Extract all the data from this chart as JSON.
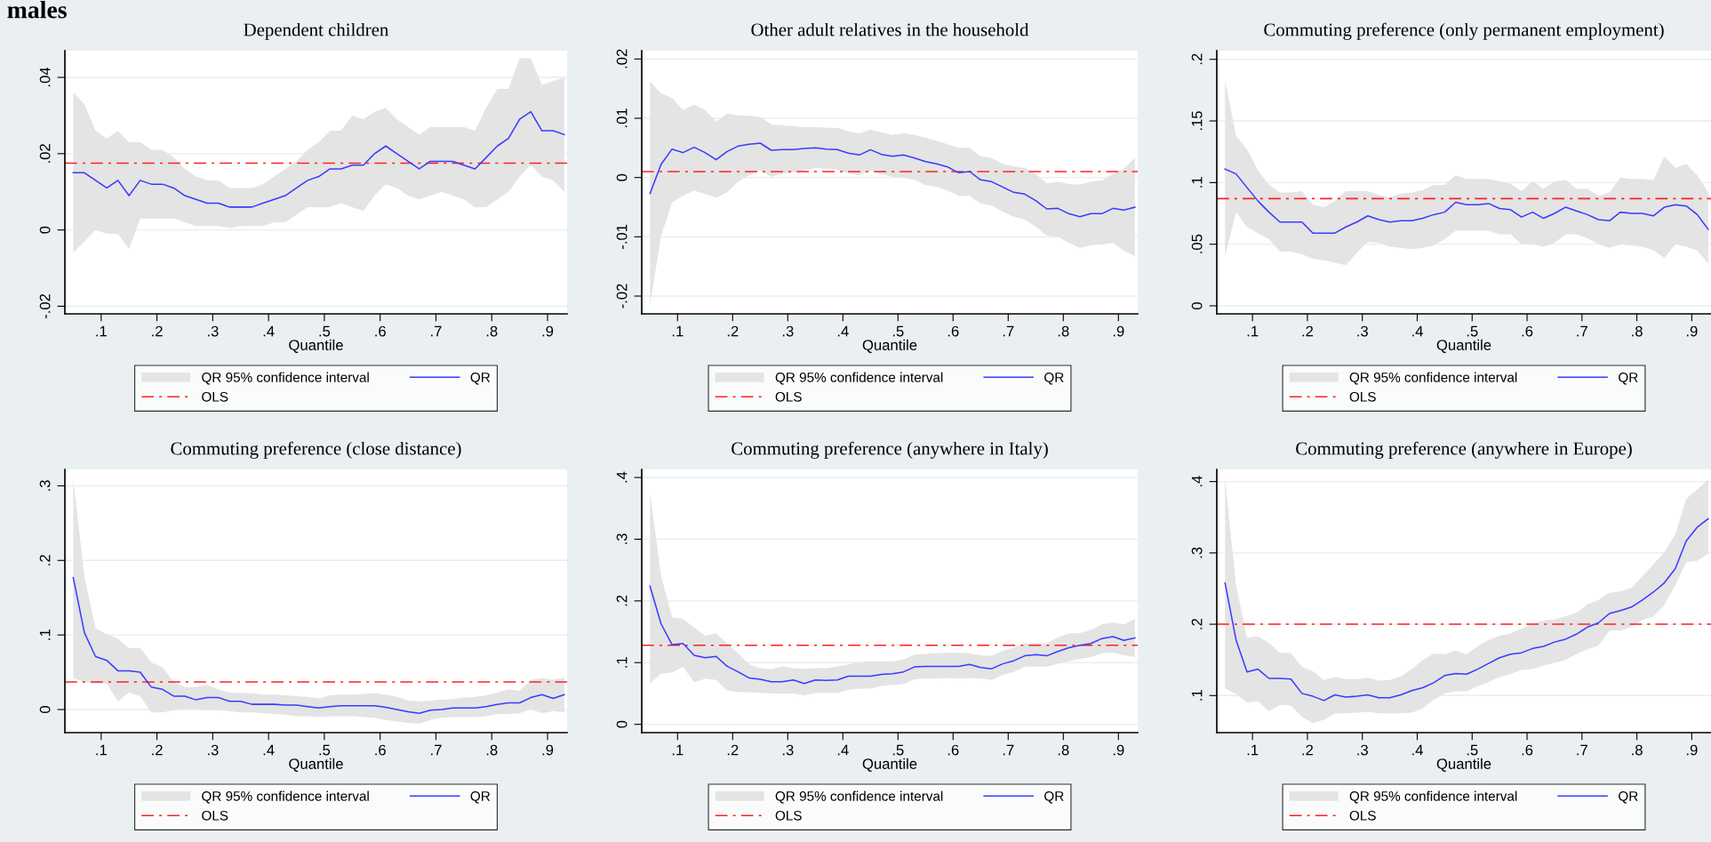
{
  "chart_data": [
    {
      "type": "line",
      "title": "Dependent children",
      "xlabel": "Quantile",
      "annotations": [
        "QR 95% confidence interval",
        "males"
      ],
      "x": [
        0.05,
        0.07,
        0.09,
        0.11,
        0.13,
        0.15,
        0.17,
        0.19,
        0.21,
        0.23,
        0.25,
        0.27,
        0.29,
        0.31,
        0.33,
        0.35,
        0.37,
        0.39,
        0.41,
        0.43,
        0.45,
        0.47,
        0.49,
        0.51,
        0.53,
        0.55,
        0.57,
        0.59,
        0.61,
        0.63,
        0.65,
        0.67,
        0.69,
        0.71,
        0.73,
        0.75,
        0.77,
        0.79,
        0.81,
        0.83,
        0.85,
        0.87,
        0.89,
        0.91,
        0.93
      ],
      "series": [
        {
          "lower": [
            -0.006,
            -0.003,
            0,
            -0.001,
            -0.001,
            -0.005,
            0.003,
            0.003,
            0.003,
            0.003,
            0.002,
            0.001,
            0.001,
            0.001,
            0.0005,
            0.001,
            0.001,
            0.001,
            0.002,
            0.002,
            0.004,
            0.006,
            0.006,
            0.006,
            0.007,
            0.006,
            0.005,
            0.009,
            0.012,
            0.011,
            0.009,
            0.008,
            0.009,
            0.01,
            0.009,
            0.008,
            0.006,
            0.006,
            0.008,
            0.01,
            0.014,
            0.017,
            0.014,
            0.013,
            0.01
          ],
          "upper": [
            0.036,
            0.033,
            0.026,
            0.024,
            0.026,
            0.023,
            0.023,
            0.021,
            0.021,
            0.019,
            0.016,
            0.014,
            0.013,
            0.013,
            0.011,
            0.011,
            0.011,
            0.012,
            0.014,
            0.016,
            0.018,
            0.021,
            0.023,
            0.026,
            0.026,
            0.03,
            0.029,
            0.031,
            0.032,
            0.029,
            0.027,
            0.025,
            0.027,
            0.027,
            0.027,
            0.027,
            0.026,
            0.032,
            0.037,
            0.037,
            0.045,
            0.045,
            0.038,
            0.039,
            0.04
          ],
          "name": "QR",
          "color": "#3a3aff",
          "values": [
            0.015,
            0.015,
            0.013,
            0.011,
            0.013,
            0.009,
            0.013,
            0.012,
            0.012,
            0.011,
            0.009,
            0.008,
            0.007,
            0.007,
            0.006,
            0.006,
            0.006,
            0.007,
            0.008,
            0.009,
            0.011,
            0.013,
            0.014,
            0.016,
            0.016,
            0.017,
            0.017,
            0.02,
            0.022,
            0.02,
            0.018,
            0.016,
            0.018,
            0.018,
            0.018,
            0.017,
            0.016,
            0.019,
            0.022,
            0.024,
            0.029,
            0.031,
            0.026,
            0.026,
            0.025
          ]
        }
      ],
      "ref_lines": [
        {
          "axis": "y",
          "value": 0.0175,
          "label": "OLS",
          "color": "#ff2020",
          "line_style": "dashdot"
        }
      ],
      "xlim": [
        0.035,
        0.935
      ],
      "xticks": [
        {
          "value": 0.1,
          "label": ".1"
        },
        {
          "value": 0.2,
          "label": ".2"
        },
        {
          "value": 0.3,
          "label": ".3"
        },
        {
          "value": 0.4,
          "label": ".4"
        },
        {
          "value": 0.5,
          "label": ".5"
        },
        {
          "value": 0.6,
          "label": ".6"
        },
        {
          "value": 0.7,
          "label": ".7"
        },
        {
          "value": 0.8,
          "label": ".8"
        },
        {
          "value": 0.9,
          "label": ".9"
        }
      ],
      "ylim": [
        -0.022,
        0.047
      ],
      "yticks": [
        {
          "value": -0.02,
          "label": "-.02"
        },
        0,
        {
          "value": 0.02,
          "label": ".02"
        },
        {
          "value": 0.04,
          "label": ".04"
        }
      ],
      "grid": "y",
      "legend": "bottom"
    },
    {
      "type": "line",
      "title": "Other adult relatives in the household",
      "xlabel": "Quantile",
      "annotations": [
        "QR 95% confidence interval"
      ],
      "x": [
        0.05,
        0.07,
        0.09,
        0.11,
        0.13,
        0.15,
        0.17,
        0.19,
        0.21,
        0.23,
        0.25,
        0.27,
        0.29,
        0.31,
        0.33,
        0.35,
        0.37,
        0.39,
        0.41,
        0.43,
        0.45,
        0.47,
        0.49,
        0.51,
        0.53,
        0.55,
        0.57,
        0.59,
        0.61,
        0.63,
        0.65,
        0.67,
        0.69,
        0.71,
        0.73,
        0.75,
        0.77,
        0.79,
        0.81,
        0.83,
        0.85,
        0.87,
        0.89,
        0.91,
        0.93
      ],
      "series": [
        {
          "lower": [
            -0.0215,
            -0.0099,
            -0.0042,
            -0.0031,
            -0.0022,
            -0.0028,
            -0.0034,
            -0.0025,
            -0.0007,
            0.0004,
            0.0012,
            0.0001,
            0.0006,
            0.0009,
            0.0012,
            0.0016,
            0.0015,
            0.0013,
            0.0007,
            0.0004,
            0.0012,
            0.0006,
            0.0001,
            0,
            -0.0004,
            -0.0013,
            -0.0016,
            -0.0022,
            -0.0031,
            -0.0031,
            -0.0044,
            -0.0047,
            -0.0058,
            -0.0066,
            -0.0071,
            -0.0083,
            -0.0098,
            -0.01,
            -0.011,
            -0.0119,
            -0.0114,
            -0.0113,
            -0.011,
            -0.0123,
            -0.0133
          ],
          "upper": [
            0.0162,
            0.0142,
            0.0134,
            0.0114,
            0.0123,
            0.0114,
            0.0094,
            0.0108,
            0.0105,
            0.0104,
            0.0102,
            0.009,
            0.0088,
            0.0087,
            0.0085,
            0.0085,
            0.0084,
            0.0084,
            0.0078,
            0.0074,
            0.0081,
            0.0076,
            0.0072,
            0.0075,
            0.0072,
            0.0067,
            0.0062,
            0.0056,
            0.005,
            0.005,
            0.0036,
            0.0033,
            0.0023,
            0.0019,
            0.0016,
            0.0006,
            -0.001,
            -0.0007,
            -0.0011,
            -0.0012,
            -0.0007,
            -0.0005,
            0.0006,
            0.0015,
            0.0033
          ],
          "name": "QR",
          "color": "#3a3aff",
          "values": [
            -0.0027,
            0.0022,
            0.0048,
            0.0042,
            0.0051,
            0.0042,
            0.003,
            0.0044,
            0.0053,
            0.0056,
            0.0058,
            0.0046,
            0.0047,
            0.0047,
            0.0049,
            0.005,
            0.0048,
            0.0047,
            0.0041,
            0.0038,
            0.0047,
            0.0039,
            0.0036,
            0.0038,
            0.0033,
            0.0027,
            0.0023,
            0.0018,
            0.0008,
            0.001,
            -0.0004,
            -0.0007,
            -0.0016,
            -0.0025,
            -0.0028,
            -0.0039,
            -0.0053,
            -0.0052,
            -0.0061,
            -0.0066,
            -0.0061,
            -0.0061,
            -0.0052,
            -0.0055,
            -0.005
          ]
        }
      ],
      "ref_lines": [
        {
          "axis": "y",
          "value": 0.001,
          "label": "OLS",
          "color": "#ff2020",
          "line_style": "dashdot"
        }
      ],
      "xlim": [
        0.035,
        0.935
      ],
      "xticks": [
        {
          "value": 0.1,
          "label": ".1"
        },
        {
          "value": 0.2,
          "label": ".2"
        },
        {
          "value": 0.3,
          "label": ".3"
        },
        {
          "value": 0.4,
          "label": ".4"
        },
        {
          "value": 0.5,
          "label": ".5"
        },
        {
          "value": 0.6,
          "label": ".6"
        },
        {
          "value": 0.7,
          "label": ".7"
        },
        {
          "value": 0.8,
          "label": ".8"
        },
        {
          "value": 0.9,
          "label": ".9"
        }
      ],
      "ylim": [
        -0.023,
        0.0214
      ],
      "yticks": [
        {
          "value": -0.02,
          "label": "-.02"
        },
        {
          "value": -0.01,
          "label": "-.01"
        },
        0,
        {
          "value": 0.01,
          "label": ".01"
        },
        {
          "value": 0.02,
          "label": ".02"
        }
      ],
      "grid": "y",
      "legend": "bottom"
    },
    {
      "type": "line",
      "title": "Commuting preference (only permanent employment)",
      "xlabel": "Quantile",
      "annotations": [
        "QR 95% confidence interval"
      ],
      "x": [
        0.05,
        0.07,
        0.09,
        0.11,
        0.13,
        0.15,
        0.17,
        0.19,
        0.21,
        0.23,
        0.25,
        0.27,
        0.29,
        0.31,
        0.33,
        0.35,
        0.37,
        0.39,
        0.41,
        0.43,
        0.45,
        0.47,
        0.49,
        0.51,
        0.53,
        0.55,
        0.57,
        0.59,
        0.61,
        0.63,
        0.65,
        0.67,
        0.69,
        0.71,
        0.73,
        0.75,
        0.77,
        0.79,
        0.81,
        0.83,
        0.85,
        0.87,
        0.89,
        0.91,
        0.93
      ],
      "series": [
        {
          "lower": [
            0.04,
            0.076,
            0.064,
            0.059,
            0.054,
            0.044,
            0.044,
            0.042,
            0.038,
            0.037,
            0.035,
            0.033,
            0.043,
            0.052,
            0.051,
            0.048,
            0.047,
            0.046,
            0.047,
            0.049,
            0.054,
            0.061,
            0.061,
            0.061,
            0.061,
            0.058,
            0.058,
            0.05,
            0.05,
            0.048,
            0.051,
            0.058,
            0.058,
            0.055,
            0.05,
            0.047,
            0.05,
            0.049,
            0.048,
            0.045,
            0.039,
            0.05,
            0.048,
            0.045,
            0.034
          ],
          "upper": [
            0.183,
            0.138,
            0.127,
            0.11,
            0.098,
            0.092,
            0.092,
            0.093,
            0.082,
            0.08,
            0.085,
            0.093,
            0.093,
            0.093,
            0.09,
            0.088,
            0.091,
            0.092,
            0.094,
            0.098,
            0.098,
            0.106,
            0.103,
            0.103,
            0.103,
            0.101,
            0.099,
            0.093,
            0.101,
            0.095,
            0.101,
            0.102,
            0.095,
            0.095,
            0.089,
            0.092,
            0.104,
            0.103,
            0.103,
            0.102,
            0.121,
            0.112,
            0.115,
            0.106,
            0.092
          ],
          "name": "QR",
          "color": "#3a3aff",
          "values": [
            0.111,
            0.107,
            0.096,
            0.085,
            0.076,
            0.068,
            0.068,
            0.068,
            0.059,
            0.059,
            0.059,
            0.064,
            0.068,
            0.073,
            0.07,
            0.068,
            0.069,
            0.069,
            0.071,
            0.074,
            0.076,
            0.084,
            0.082,
            0.082,
            0.083,
            0.079,
            0.078,
            0.072,
            0.076,
            0.071,
            0.075,
            0.08,
            0.077,
            0.074,
            0.07,
            0.069,
            0.076,
            0.075,
            0.075,
            0.073,
            0.08,
            0.082,
            0.081,
            0.074,
            0.062
          ]
        }
      ],
      "ref_lines": [
        {
          "axis": "y",
          "value": 0.087,
          "label": "OLS",
          "color": "#ff2020",
          "line_style": "dashdot"
        }
      ],
      "xlim": [
        0.035,
        0.935
      ],
      "xticks": [
        {
          "value": 0.1,
          "label": ".1"
        },
        {
          "value": 0.2,
          "label": ".2"
        },
        {
          "value": 0.3,
          "label": ".3"
        },
        {
          "value": 0.4,
          "label": ".4"
        },
        {
          "value": 0.5,
          "label": ".5"
        },
        {
          "value": 0.6,
          "label": ".6"
        },
        {
          "value": 0.7,
          "label": ".7"
        },
        {
          "value": 0.8,
          "label": ".8"
        },
        {
          "value": 0.9,
          "label": ".9"
        }
      ],
      "ylim": [
        -0.0065,
        0.207
      ],
      "yticks": [
        0,
        {
          "value": 0.05,
          "label": ".05"
        },
        {
          "value": 0.1,
          "label": ".1"
        },
        {
          "value": 0.15,
          "label": ".15"
        },
        {
          "value": 0.2,
          "label": ".2"
        }
      ],
      "grid": "y",
      "legend": "bottom"
    },
    {
      "type": "line",
      "title": "Commuting preference (close distance)",
      "xlabel": "Quantile",
      "annotations": [
        "QR 95% confidence interval"
      ],
      "x": [
        0.05,
        0.07,
        0.09,
        0.11,
        0.13,
        0.15,
        0.17,
        0.19,
        0.21,
        0.23,
        0.25,
        0.27,
        0.29,
        0.31,
        0.33,
        0.35,
        0.37,
        0.39,
        0.41,
        0.43,
        0.45,
        0.47,
        0.49,
        0.51,
        0.53,
        0.55,
        0.57,
        0.59,
        0.61,
        0.63,
        0.65,
        0.67,
        0.69,
        0.71,
        0.73,
        0.75,
        0.77,
        0.79,
        0.81,
        0.83,
        0.85,
        0.87,
        0.89,
        0.91,
        0.93
      ],
      "series": [
        {
          "lower": [
            0.042,
            0.037,
            0.035,
            0.035,
            0.011,
            0.023,
            0.018,
            -0.004,
            -0.004,
            -0.0005,
            0.001,
            0.001,
            -0.0005,
            -0.001,
            -0.002,
            -0.004,
            -0.004,
            -0.005,
            -0.006,
            -0.007,
            -0.009,
            -0.009,
            -0.01,
            -0.009,
            -0.009,
            -0.009,
            -0.01,
            -0.011,
            -0.014,
            -0.016,
            -0.018,
            -0.019,
            -0.014,
            -0.011,
            -0.01,
            -0.01,
            -0.01,
            -0.009,
            -0.006,
            -0.006,
            -0.005,
            0.001,
            -0.005,
            -0.002,
            -0.004
          ],
          "upper": [
            0.309,
            0.178,
            0.109,
            0.101,
            0.095,
            0.082,
            0.083,
            0.063,
            0.057,
            0.037,
            0.03,
            0.03,
            0.033,
            0.027,
            0.023,
            0.022,
            0.022,
            0.02,
            0.02,
            0.019,
            0.018,
            0.017,
            0.015,
            0.019,
            0.02,
            0.02,
            0.021,
            0.022,
            0.02,
            0.017,
            0.012,
            0.011,
            0.012,
            0.013,
            0.014,
            0.016,
            0.017,
            0.019,
            0.023,
            0.027,
            0.025,
            0.04,
            0.042,
            0.04,
            0.043
          ],
          "name": "QR",
          "color": "#3a3aff",
          "values": [
            0.177,
            0.103,
            0.071,
            0.066,
            0.052,
            0.052,
            0.05,
            0.03,
            0.027,
            0.018,
            0.018,
            0.013,
            0.016,
            0.016,
            0.011,
            0.011,
            0.007,
            0.007,
            0.007,
            0.006,
            0.006,
            0.004,
            0.002,
            0.004,
            0.005,
            0.005,
            0.005,
            0.005,
            0.003,
            0,
            -0.003,
            -0.005,
            -0.001,
            0,
            0.002,
            0.002,
            0.002,
            0.004,
            0.007,
            0.009,
            0.009,
            0.016,
            0.02,
            0.015,
            0.02
          ]
        }
      ],
      "ref_lines": [
        {
          "axis": "y",
          "value": 0.037,
          "label": "OLS",
          "color": "#ff2020",
          "line_style": "dashdot"
        }
      ],
      "xlim": [
        0.035,
        0.935
      ],
      "xticks": [
        {
          "value": 0.1,
          "label": ".1"
        },
        {
          "value": 0.2,
          "label": ".2"
        },
        {
          "value": 0.3,
          "label": ".3"
        },
        {
          "value": 0.4,
          "label": ".4"
        },
        {
          "value": 0.5,
          "label": ".5"
        },
        {
          "value": 0.6,
          "label": ".6"
        },
        {
          "value": 0.7,
          "label": ".7"
        },
        {
          "value": 0.8,
          "label": ".8"
        },
        {
          "value": 0.9,
          "label": ".9"
        }
      ],
      "ylim": [
        -0.031,
        0.322
      ],
      "yticks": [
        0,
        {
          "value": 0.1,
          "label": ".1"
        },
        {
          "value": 0.2,
          "label": ".2"
        },
        {
          "value": 0.3,
          "label": ".3"
        }
      ],
      "grid": "y",
      "legend": "bottom"
    },
    {
      "type": "line",
      "title": "Commuting preference (anywhere in Italy)",
      "xlabel": "Quantile",
      "annotations": [
        "QR 95% confidence interval"
      ],
      "x": [
        0.05,
        0.07,
        0.09,
        0.11,
        0.13,
        0.15,
        0.17,
        0.19,
        0.21,
        0.23,
        0.25,
        0.27,
        0.29,
        0.31,
        0.33,
        0.35,
        0.37,
        0.39,
        0.41,
        0.43,
        0.45,
        0.47,
        0.49,
        0.51,
        0.53,
        0.55,
        0.57,
        0.59,
        0.61,
        0.63,
        0.65,
        0.67,
        0.69,
        0.71,
        0.73,
        0.75,
        0.77,
        0.79,
        0.81,
        0.83,
        0.85,
        0.87,
        0.89,
        0.91,
        0.93
      ],
      "series": [
        {
          "lower": [
            0.066,
            0.082,
            0.084,
            0.093,
            0.068,
            0.074,
            0.072,
            0.055,
            0.052,
            0.052,
            0.051,
            0.05,
            0.05,
            0.05,
            0.047,
            0.051,
            0.051,
            0.051,
            0.056,
            0.058,
            0.058,
            0.062,
            0.064,
            0.065,
            0.073,
            0.074,
            0.074,
            0.075,
            0.074,
            0.075,
            0.074,
            0.072,
            0.08,
            0.085,
            0.093,
            0.094,
            0.093,
            0.098,
            0.102,
            0.106,
            0.109,
            0.115,
            0.116,
            0.112,
            0.109
          ],
          "upper": [
            0.376,
            0.241,
            0.173,
            0.171,
            0.157,
            0.144,
            0.147,
            0.131,
            0.115,
            0.097,
            0.091,
            0.089,
            0.094,
            0.091,
            0.09,
            0.091,
            0.091,
            0.094,
            0.097,
            0.1,
            0.102,
            0.102,
            0.102,
            0.105,
            0.113,
            0.114,
            0.115,
            0.116,
            0.116,
            0.115,
            0.112,
            0.111,
            0.119,
            0.124,
            0.131,
            0.132,
            0.131,
            0.141,
            0.147,
            0.148,
            0.153,
            0.162,
            0.165,
            0.162,
            0.171
          ],
          "name": "QR",
          "color": "#3a3aff",
          "values": [
            0.224,
            0.163,
            0.129,
            0.131,
            0.112,
            0.108,
            0.11,
            0.094,
            0.085,
            0.075,
            0.073,
            0.069,
            0.069,
            0.072,
            0.066,
            0.072,
            0.071,
            0.072,
            0.078,
            0.078,
            0.078,
            0.081,
            0.082,
            0.085,
            0.093,
            0.094,
            0.094,
            0.094,
            0.094,
            0.097,
            0.092,
            0.09,
            0.098,
            0.103,
            0.111,
            0.113,
            0.111,
            0.118,
            0.124,
            0.128,
            0.131,
            0.139,
            0.142,
            0.136,
            0.14
          ]
        }
      ],
      "ref_lines": [
        {
          "axis": "y",
          "value": 0.128,
          "label": "OLS",
          "color": "#ff2020",
          "line_style": "dashdot"
        }
      ],
      "xlim": [
        0.035,
        0.935
      ],
      "xticks": [
        {
          "value": 0.1,
          "label": ".1"
        },
        {
          "value": 0.2,
          "label": ".2"
        },
        {
          "value": 0.3,
          "label": ".3"
        },
        {
          "value": 0.4,
          "label": ".4"
        },
        {
          "value": 0.5,
          "label": ".5"
        },
        {
          "value": 0.6,
          "label": ".6"
        },
        {
          "value": 0.7,
          "label": ".7"
        },
        {
          "value": 0.8,
          "label": ".8"
        },
        {
          "value": 0.9,
          "label": ".9"
        }
      ],
      "ylim": [
        -0.0135,
        0.413
      ],
      "yticks": [
        0,
        {
          "value": 0.1,
          "label": ".1"
        },
        {
          "value": 0.2,
          "label": ".2"
        },
        {
          "value": 0.3,
          "label": ".3"
        },
        {
          "value": 0.4,
          "label": ".4"
        }
      ],
      "grid": "y",
      "legend": "bottom"
    },
    {
      "type": "line",
      "title": "Commuting preference (anywhere in Europe)",
      "xlabel": "Quantile",
      "annotations": [
        "QR 95% confidence interval"
      ],
      "x": [
        0.05,
        0.07,
        0.09,
        0.11,
        0.13,
        0.15,
        0.17,
        0.19,
        0.21,
        0.23,
        0.25,
        0.27,
        0.29,
        0.31,
        0.33,
        0.35,
        0.37,
        0.39,
        0.41,
        0.43,
        0.45,
        0.47,
        0.49,
        0.51,
        0.53,
        0.55,
        0.57,
        0.59,
        0.61,
        0.63,
        0.65,
        0.67,
        0.69,
        0.71,
        0.73,
        0.75,
        0.77,
        0.79,
        0.81,
        0.83,
        0.85,
        0.87,
        0.89,
        0.91,
        0.93
      ],
      "series": [
        {
          "lower": [
            0.11,
            0.102,
            0.09,
            0.092,
            0.078,
            0.087,
            0.086,
            0.07,
            0.061,
            0.066,
            0.075,
            0.075,
            0.076,
            0.077,
            0.075,
            0.075,
            0.075,
            0.076,
            0.082,
            0.094,
            0.103,
            0.106,
            0.106,
            0.113,
            0.119,
            0.126,
            0.13,
            0.136,
            0.137,
            0.142,
            0.146,
            0.15,
            0.158,
            0.165,
            0.17,
            0.191,
            0.191,
            0.196,
            0.206,
            0.211,
            0.227,
            0.255,
            0.287,
            0.289,
            0.299
          ],
          "upper": [
            0.404,
            0.255,
            0.181,
            0.183,
            0.174,
            0.16,
            0.16,
            0.14,
            0.134,
            0.122,
            0.126,
            0.123,
            0.123,
            0.125,
            0.121,
            0.122,
            0.127,
            0.137,
            0.15,
            0.159,
            0.158,
            0.163,
            0.158,
            0.169,
            0.178,
            0.184,
            0.187,
            0.194,
            0.201,
            0.205,
            0.207,
            0.211,
            0.216,
            0.228,
            0.234,
            0.244,
            0.246,
            0.251,
            0.267,
            0.284,
            0.301,
            0.326,
            0.376,
            0.389,
            0.403
          ],
          "name": "QR",
          "color": "#3a3aff",
          "values": [
            0.258,
            0.178,
            0.133,
            0.137,
            0.124,
            0.124,
            0.123,
            0.103,
            0.099,
            0.093,
            0.101,
            0.098,
            0.099,
            0.101,
            0.097,
            0.097,
            0.101,
            0.107,
            0.111,
            0.118,
            0.128,
            0.131,
            0.13,
            0.137,
            0.145,
            0.153,
            0.158,
            0.16,
            0.166,
            0.169,
            0.175,
            0.179,
            0.186,
            0.196,
            0.202,
            0.215,
            0.219,
            0.224,
            0.234,
            0.245,
            0.258,
            0.278,
            0.317,
            0.336,
            0.348
          ]
        }
      ],
      "ref_lines": [
        {
          "axis": "y",
          "value": 0.2,
          "label": "OLS",
          "color": "#ff2020",
          "line_style": "dashdot"
        }
      ],
      "xlim": [
        0.035,
        0.935
      ],
      "xticks": [
        {
          "value": 0.1,
          "label": ".1"
        },
        {
          "value": 0.2,
          "label": ".2"
        },
        {
          "value": 0.3,
          "label": ".3"
        },
        {
          "value": 0.4,
          "label": ".4"
        },
        {
          "value": 0.5,
          "label": ".5"
        },
        {
          "value": 0.6,
          "label": ".6"
        },
        {
          "value": 0.7,
          "label": ".7"
        },
        {
          "value": 0.8,
          "label": ".8"
        },
        {
          "value": 0.9,
          "label": ".9"
        }
      ],
      "ylim": [
        0.048,
        0.417
      ],
      "yticks": [
        {
          "value": 0.1,
          "label": ".1"
        },
        {
          "value": 0.2,
          "label": ".2"
        },
        {
          "value": 0.3,
          "label": ".3"
        },
        {
          "value": 0.4,
          "label": ".4"
        }
      ],
      "grid": "y",
      "legend": "bottom"
    }
  ]
}
